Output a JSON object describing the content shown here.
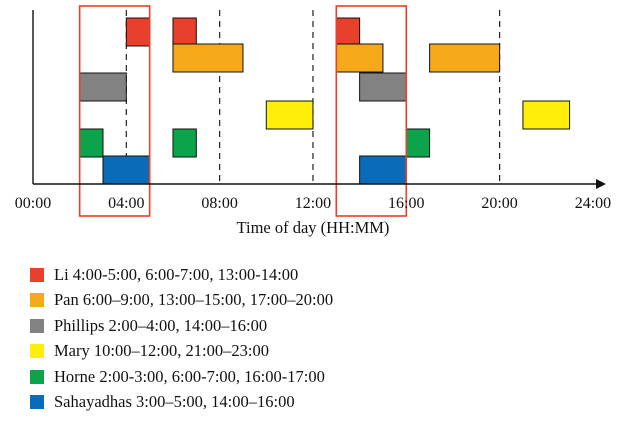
{
  "chart_data": {
    "type": "gantt",
    "xlabel": "Time of day (HH:MM)",
    "x_range": [
      0,
      24
    ],
    "x_ticks": [
      {
        "value": 0,
        "label": "00:00"
      },
      {
        "value": 4,
        "label": "04:00"
      },
      {
        "value": 8,
        "label": "08:00"
      },
      {
        "value": 12,
        "label": "12:00"
      },
      {
        "value": 16,
        "label": "16:00"
      },
      {
        "value": 20,
        "label": "20:00"
      },
      {
        "value": 24,
        "label": "24:00"
      }
    ],
    "dashed_lines_at": [
      4,
      8,
      12,
      16,
      20
    ],
    "highlight_windows": [
      {
        "start": 2,
        "end": 5
      },
      {
        "start": 13,
        "end": 16
      }
    ],
    "highlight_color": "#e8402a",
    "series": [
      {
        "name": "Li",
        "color": "#e8402a",
        "legend_label": "Li 4:00-5:00, 6:00-7:00, 13:00-14:00",
        "intervals": [
          [
            4,
            5
          ],
          [
            6,
            7
          ],
          [
            13,
            14
          ]
        ]
      },
      {
        "name": "Pan",
        "color": "#f6a81b",
        "legend_label": "Pan 6:00–9:00, 13:00–15:00, 17:00–20:00",
        "intervals": [
          [
            6,
            9
          ],
          [
            13,
            15
          ],
          [
            17,
            20
          ]
        ]
      },
      {
        "name": "Phillips",
        "color": "#828282",
        "legend_label": "Phillips 2:00–4:00, 14:00–16:00",
        "intervals": [
          [
            2,
            4
          ],
          [
            14,
            16
          ]
        ]
      },
      {
        "name": "Mary",
        "color": "#ffee0a",
        "legend_label": "Mary 10:00–12:00, 21:00–23:00",
        "intervals": [
          [
            10,
            12
          ],
          [
            21,
            23
          ]
        ]
      },
      {
        "name": "Horne",
        "color": "#0ca44a",
        "legend_label": "Horne 2:00-3:00, 6:00-7:00, 16:00-17:00",
        "intervals": [
          [
            2,
            3
          ],
          [
            6,
            7
          ],
          [
            16,
            17
          ]
        ]
      },
      {
        "name": "Sahayadhas",
        "color": "#0a6cb8",
        "legend_label": "Sahayadhas 3:00–5:00, 14:00–16:00",
        "intervals": [
          [
            3,
            5
          ],
          [
            14,
            16
          ]
        ]
      }
    ]
  }
}
